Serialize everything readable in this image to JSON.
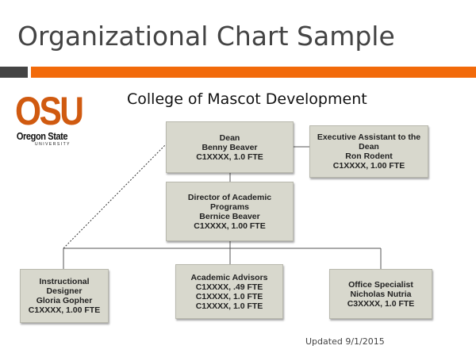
{
  "title": "Organizational Chart Sample",
  "subtitle": "College of Mascot Development",
  "logo": {
    "main": "OSU",
    "line2": "Oregon State",
    "line3": "UNIVERSITY"
  },
  "colors": {
    "accent": "#f26a0a",
    "logo": "#d05a10",
    "box": "#d8d8cd"
  },
  "boxes": {
    "dean": [
      "Dean",
      "Benny Beaver",
      "C1XXXX, 1.0 FTE"
    ],
    "exec": [
      "Executive Assistant to the Dean",
      "Ron Rodent",
      "C1XXXX, 1.00  FTE"
    ],
    "director": [
      "Director of Academic Programs",
      "Bernice Beaver",
      "C1XXXX, 1.00 FTE"
    ],
    "designer": [
      "Instructional Designer",
      "Gloria Gopher",
      "C1XXXX, 1.00 FTE"
    ],
    "advisors": [
      "Academic Advisors",
      "C1XXXX,  .49 FTE",
      "C1XXXX, 1.0 FTE",
      "C1XXXX, 1.0 FTE"
    ],
    "office": [
      "Office Specialist",
      "Nicholas Nutria",
      "C3XXXX,  1.0 FTE"
    ]
  },
  "updated": "Updated 9/1/2015"
}
